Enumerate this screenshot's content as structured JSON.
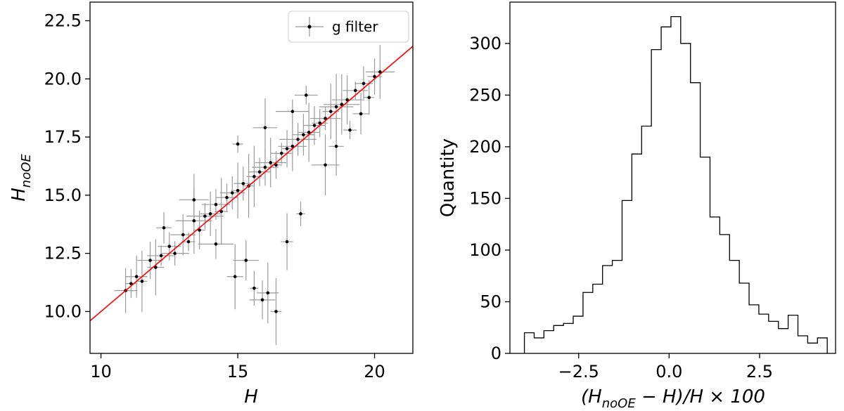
{
  "chart_data": [
    {
      "type": "scatter",
      "title": "",
      "xlabel": "H",
      "ylabel_main": "H",
      "ylabel_sub": "noOE",
      "xlim": [
        9.6,
        21.4
      ],
      "ylim": [
        8.2,
        23.3
      ],
      "xticks": [
        10,
        15,
        20
      ],
      "yticks": [
        10.0,
        12.5,
        15.0,
        17.5,
        20.0,
        22.5
      ],
      "xtick_labels": [
        "10",
        "15",
        "20"
      ],
      "ytick_labels": [
        "10.0",
        "12.5",
        "15.0",
        "17.5",
        "20.0",
        "22.5"
      ],
      "legend": {
        "label": "g filter",
        "placement": "top-right"
      },
      "reference_line": {
        "color": "#ff0000",
        "slope": 1.0,
        "intercept": 0.0
      },
      "series": [
        {
          "points": [
            [
              10.9,
              10.9
            ],
            [
              11.1,
              11.2
            ],
            [
              11.3,
              11.5
            ],
            [
              11.5,
              11.3
            ],
            [
              11.8,
              12.2
            ],
            [
              12.0,
              11.9
            ],
            [
              12.2,
              12.4
            ],
            [
              12.5,
              12.8
            ],
            [
              12.7,
              12.5
            ],
            [
              13.0,
              13.3
            ],
            [
              13.2,
              13.0
            ],
            [
              13.4,
              13.9
            ],
            [
              13.6,
              13.5
            ],
            [
              13.8,
              14.1
            ],
            [
              14.0,
              14.2
            ],
            [
              14.2,
              14.6
            ],
            [
              14.4,
              14.3
            ],
            [
              14.6,
              14.9
            ],
            [
              14.8,
              15.1
            ],
            [
              15.0,
              15.2
            ],
            [
              15.2,
              15.5
            ],
            [
              15.4,
              15.4
            ],
            [
              15.6,
              15.8
            ],
            [
              15.8,
              16.0
            ],
            [
              16.0,
              16.2
            ],
            [
              16.2,
              16.4
            ],
            [
              16.4,
              16.3
            ],
            [
              16.6,
              16.8
            ],
            [
              16.8,
              17.0
            ],
            [
              17.0,
              17.1
            ],
            [
              17.2,
              17.4
            ],
            [
              17.4,
              17.6
            ],
            [
              17.6,
              17.7
            ],
            [
              17.8,
              18.0
            ],
            [
              18.0,
              18.1
            ],
            [
              18.2,
              18.3
            ],
            [
              18.4,
              18.6
            ],
            [
              18.6,
              18.8
            ],
            [
              18.8,
              18.9
            ],
            [
              19.0,
              19.1
            ],
            [
              19.3,
              19.5
            ],
            [
              19.6,
              19.8
            ],
            [
              20.0,
              20.1
            ],
            [
              20.2,
              20.3
            ],
            [
              14.9,
              11.5
            ],
            [
              15.6,
              11.0
            ],
            [
              15.9,
              10.5
            ],
            [
              16.4,
              10.0
            ],
            [
              16.1,
              10.8
            ],
            [
              15.3,
              12.2
            ],
            [
              16.8,
              13.0
            ],
            [
              14.2,
              12.9
            ],
            [
              17.3,
              14.2
            ],
            [
              13.4,
              14.8
            ],
            [
              18.2,
              16.3
            ],
            [
              18.6,
              17.1
            ],
            [
              19.1,
              17.8
            ],
            [
              15.0,
              17.2
            ],
            [
              16.0,
              17.9
            ],
            [
              17.0,
              18.6
            ],
            [
              17.5,
              19.3
            ],
            [
              19.5,
              18.5
            ],
            [
              19.8,
              19.2
            ],
            [
              12.3,
              13.6
            ]
          ]
        }
      ]
    },
    {
      "type": "histogram",
      "title": "",
      "xlabel_prefix": "(H",
      "xlabel_sub": "noOE",
      "xlabel_suffix": " − H)/H × 100",
      "ylabel": "Quantity",
      "xlim": [
        -4.4,
        4.6
      ],
      "ylim": [
        0,
        340
      ],
      "xticks": [
        -2.5,
        0.0,
        2.5
      ],
      "yticks": [
        0,
        50,
        100,
        150,
        200,
        250,
        300
      ],
      "xtick_labels": [
        "−2.5",
        "0.0",
        "2.5"
      ],
      "ytick_labels": [
        "0",
        "50",
        "100",
        "150",
        "200",
        "250",
        "300"
      ],
      "bin_start": -4.0,
      "bin_width": 0.27,
      "counts": [
        20,
        15,
        22,
        27,
        29,
        36,
        59,
        67,
        85,
        90,
        148,
        193,
        220,
        294,
        316,
        326,
        300,
        262,
        190,
        132,
        115,
        90,
        68,
        47,
        38,
        31,
        24,
        37,
        17,
        10,
        15
      ]
    }
  ]
}
